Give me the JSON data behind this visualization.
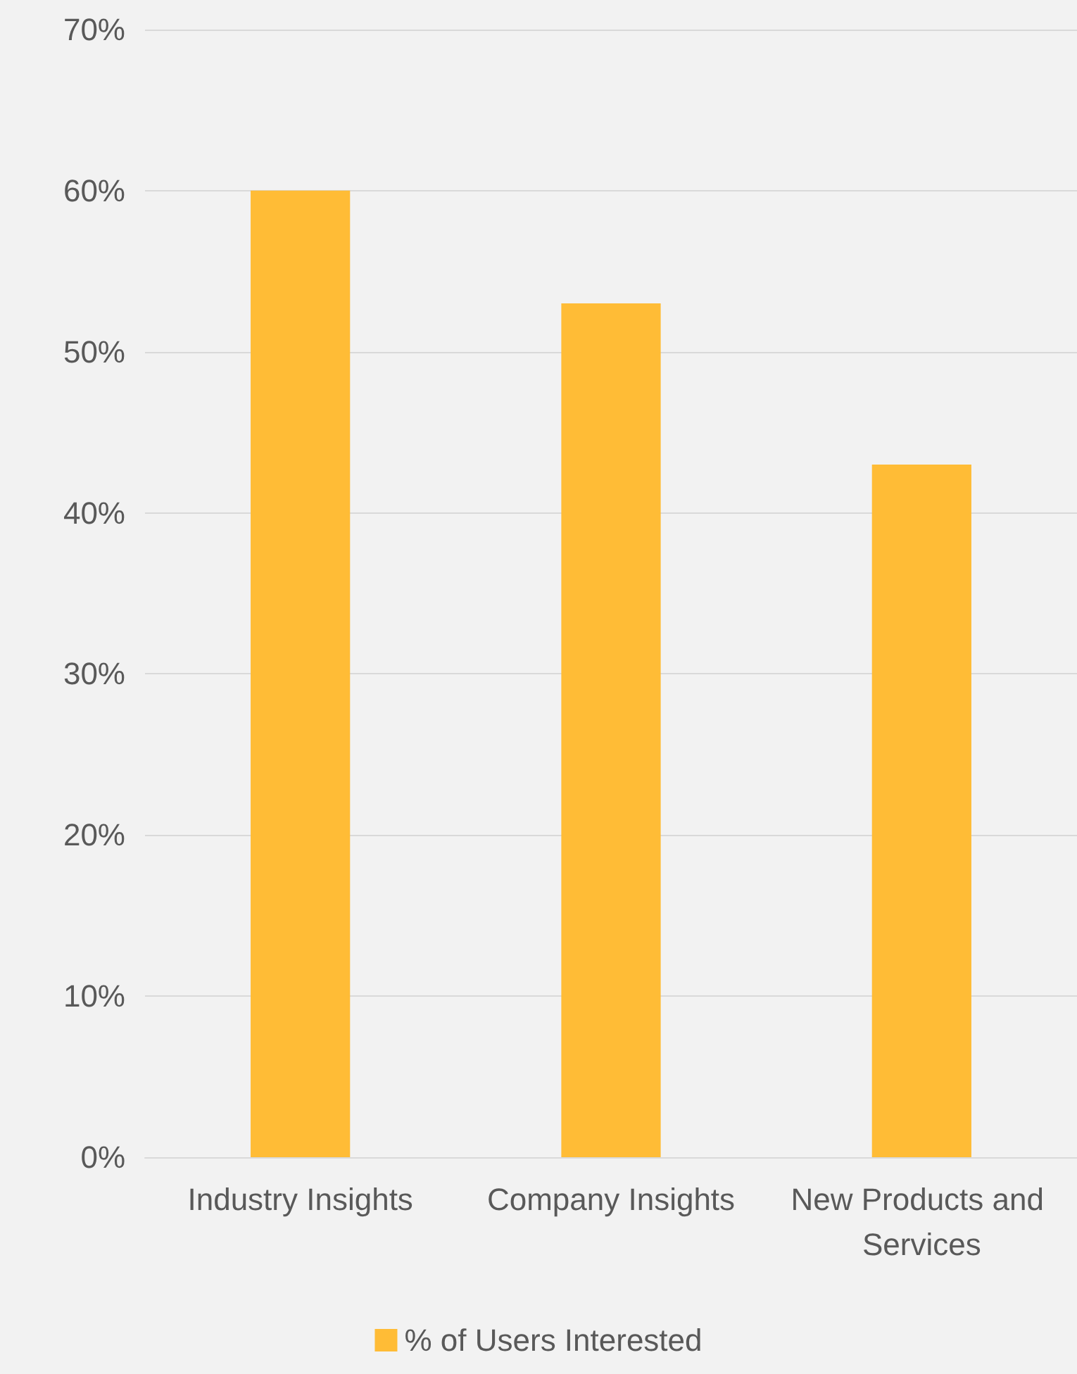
{
  "chart_data": {
    "type": "bar",
    "categories": [
      "Industry Insights",
      "Company Insights",
      "New Products and Services"
    ],
    "series": [
      {
        "name": "% of Users Interested",
        "color": "#ffbc36",
        "values": [
          60,
          53,
          43
        ]
      }
    ],
    "ylim": [
      0,
      70
    ],
    "yticks": [
      {
        "value": 0,
        "label": "0%"
      },
      {
        "value": 10,
        "label": "10%"
      },
      {
        "value": 20,
        "label": "20%"
      },
      {
        "value": 30,
        "label": "30%"
      },
      {
        "value": 40,
        "label": "40%"
      },
      {
        "value": 50,
        "label": "50%"
      },
      {
        "value": 60,
        "label": "60%"
      },
      {
        "value": 70,
        "label": "70%"
      }
    ],
    "grid": "y",
    "legend": "bottom"
  }
}
